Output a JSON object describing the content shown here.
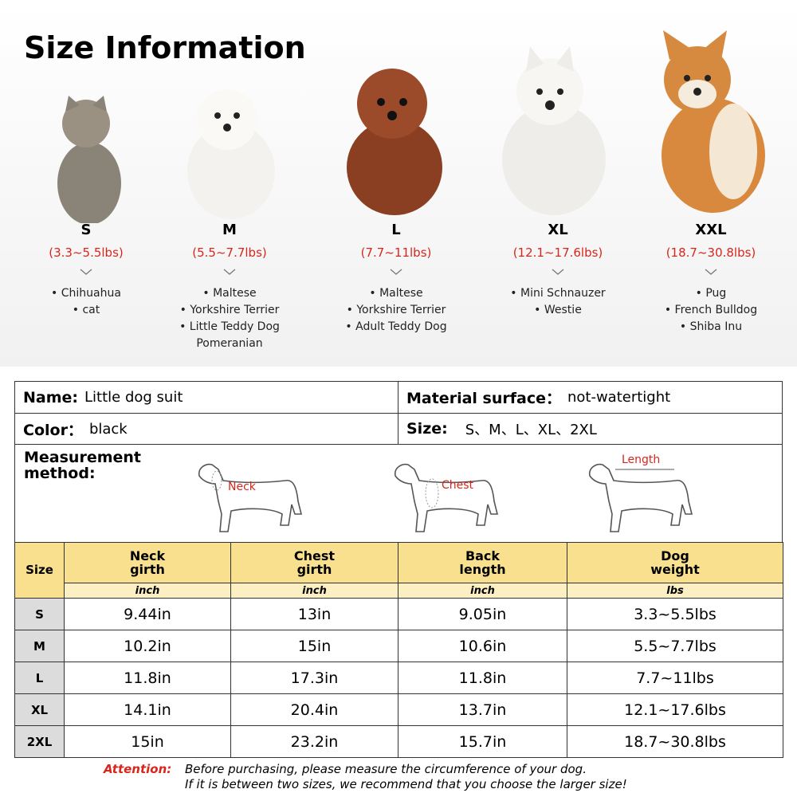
{
  "header": {
    "title": "Size Information"
  },
  "sizes": [
    {
      "size": "S",
      "weight": "(3.3~5.5lbs)",
      "breeds": [
        "• Chihuahua",
        "• cat"
      ]
    },
    {
      "size": "M",
      "weight": "(5.5~7.7lbs)",
      "breeds": [
        "• Maltese",
        "• Yorkshire Terrier",
        "• Little Teddy Dog",
        "Pomeranian"
      ]
    },
    {
      "size": "L",
      "weight": "(7.7~11lbs)",
      "breeds": [
        "• Maltese",
        "• Yorkshire Terrier",
        "• Adult Teddy Dog"
      ]
    },
    {
      "size": "XL",
      "weight": "(12.1~17.6lbs)",
      "breeds": [
        "• Mini Schnauzer",
        "• Westie"
      ]
    },
    {
      "size": "XXL",
      "weight": "(18.7~30.8lbs)",
      "breeds": [
        "• Pug",
        "• French Bulldog",
        "• Shiba Inu"
      ]
    }
  ],
  "info": {
    "name_label": "Name:",
    "name": "Little dog suit",
    "material_label": "Material surface：",
    "material": "not-watertight",
    "color_label": "Color：",
    "color": "black",
    "size_label": "Size:",
    "size": "S、M、L、XL、2XL",
    "measurement_label": [
      "Measurement",
      "method:"
    ]
  },
  "diagrams": [
    "Neck",
    "Chest",
    "Length"
  ],
  "table": {
    "columns": [
      "Size",
      "Neck girth",
      "Chest girth",
      "Back length",
      "Dog weight"
    ],
    "units": [
      "inch",
      "inch",
      "inch",
      "lbs"
    ],
    "rows": [
      [
        "S",
        "9.44in",
        "13in",
        "9.05in",
        "3.3~5.5lbs"
      ],
      [
        "M",
        "10.2in",
        "15in",
        "10.6in",
        "5.5~7.7lbs"
      ],
      [
        "L",
        "11.8in",
        "17.3in",
        "11.8in",
        "7.7~11lbs"
      ],
      [
        "XL",
        "14.1in",
        "20.4in",
        "13.7in",
        "12.1~17.6lbs"
      ],
      [
        "2XL",
        "15in",
        "23.2in",
        "15.7in",
        "18.7~30.8lbs"
      ]
    ]
  },
  "attention": {
    "label": "Attention:",
    "lines": [
      "Before purchasing, please measure the circumference of your dog.",
      "If it is between two sizes, we recommend that you choose the larger size!"
    ]
  }
}
